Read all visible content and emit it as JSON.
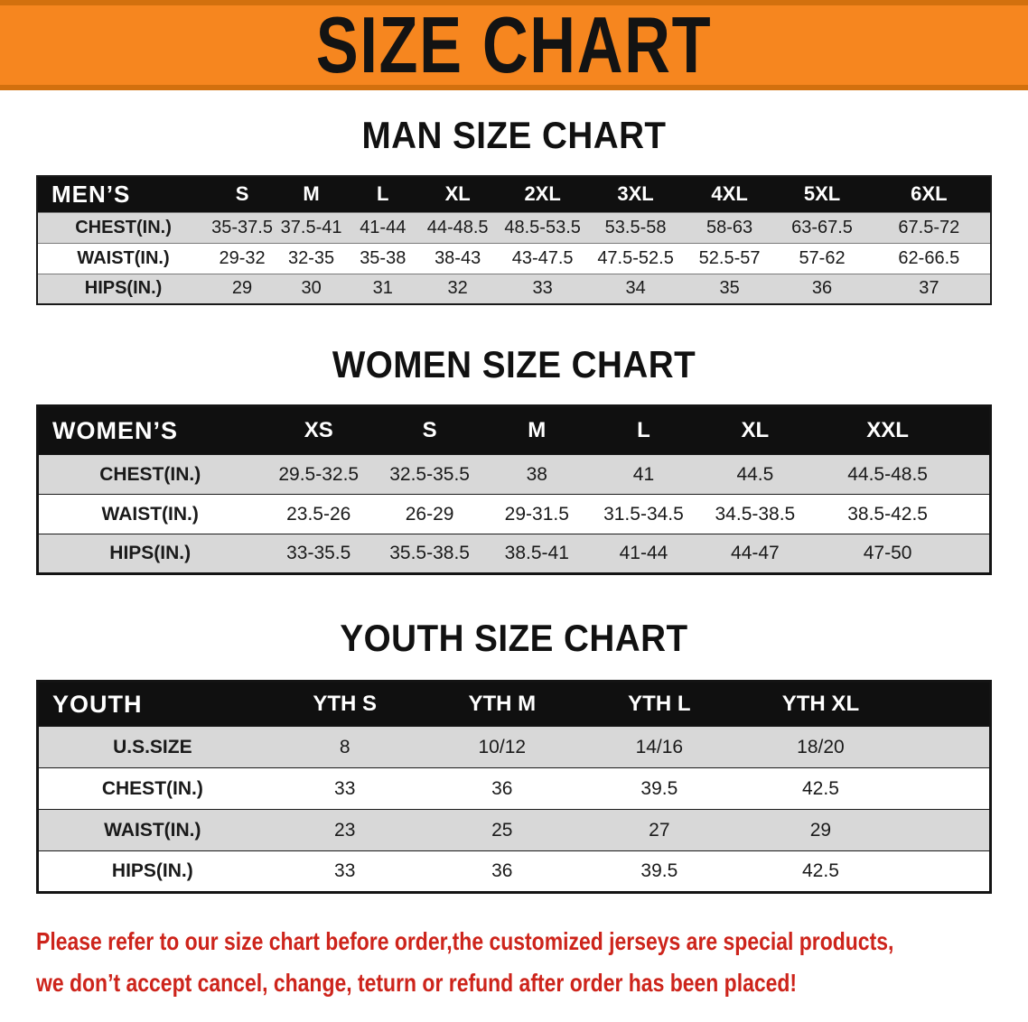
{
  "banner": {
    "title": "SIZE CHART"
  },
  "sections": [
    {
      "id": "men",
      "heading": "MAN SIZE CHART",
      "header": [
        "MEN’S",
        "S",
        "M",
        "L",
        "XL",
        "2XL",
        "3XL",
        "4XL",
        "5XL",
        "6XL"
      ],
      "rows": [
        [
          "CHEST(IN.)",
          "35-37.5",
          "37.5-41",
          "41-44",
          "44-48.5",
          "48.5-53.5",
          "53.5-58",
          "58-63",
          "63-67.5",
          "67.5-72"
        ],
        [
          "WAIST(IN.)",
          "29-32",
          "32-35",
          "35-38",
          "38-43",
          "43-47.5",
          "47.5-52.5",
          "52.5-57",
          "57-62",
          "62-66.5"
        ],
        [
          "HIPS(IN.)",
          "29",
          "30",
          "31",
          "32",
          "33",
          "34",
          "35",
          "36",
          "37"
        ]
      ]
    },
    {
      "id": "women",
      "heading": "WOMEN SIZE CHART",
      "header": [
        "WOMEN’S",
        "XS",
        "S",
        "M",
        "L",
        "XL",
        "XXL"
      ],
      "rows": [
        [
          "CHEST(IN.)",
          "29.5-32.5",
          "32.5-35.5",
          "38",
          "41",
          "44.5",
          "44.5-48.5"
        ],
        [
          "WAIST(IN.)",
          "23.5-26",
          "26-29",
          "29-31.5",
          "31.5-34.5",
          "34.5-38.5",
          "38.5-42.5"
        ],
        [
          "HIPS(IN.)",
          "33-35.5",
          "35.5-38.5",
          "38.5-41",
          "41-44",
          "44-47",
          "47-50"
        ]
      ]
    },
    {
      "id": "youth",
      "heading": "YOUTH SIZE CHART",
      "header": [
        "YOUTH",
        "YTH S",
        "YTH M",
        "YTH L",
        "YTH XL"
      ],
      "rows": [
        [
          "U.S.SIZE",
          "8",
          "10/12",
          "14/16",
          "18/20"
        ],
        [
          "CHEST(IN.)",
          "33",
          "36",
          "39.5",
          "42.5"
        ],
        [
          "WAIST(IN.)",
          "23",
          "25",
          "27",
          "29"
        ],
        [
          "HIPS(IN.)",
          "33",
          "36",
          "39.5",
          "42.5"
        ]
      ]
    }
  ],
  "disclaimer": {
    "line1": "Please refer to our size chart before order,the customized jerseys are special products,",
    "line2": "we don’t accept cancel, change, teturn or refund after order has been placed!"
  },
  "colors": {
    "banner_bg": "#f6861f",
    "banner_edge": "#d2700e",
    "table_header_bg": "#101010",
    "row_alt_bg": "#d8d8d8",
    "disclaimer_color": "#cd241b"
  }
}
